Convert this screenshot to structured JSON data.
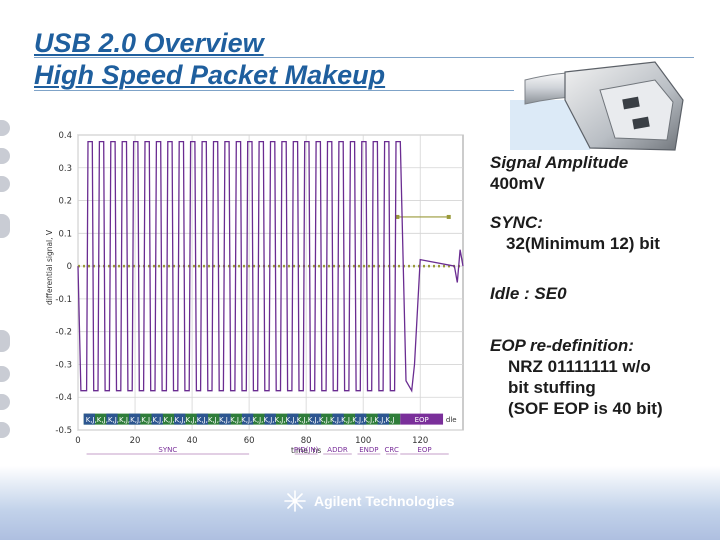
{
  "header": {
    "title_line1": "USB 2.0 Overview",
    "title_line2": "High Speed Packet Makeup"
  },
  "notes": {
    "signal_amplitude_label": "Signal Amplitude",
    "signal_amplitude_value": "400mV",
    "sync_label": "SYNC:",
    "sync_value": "32(Minimum 12) bit",
    "idle": "Idle : SE0",
    "eop_label": "EOP re-definition:",
    "eop_line1": "NRZ 01111111 w/o",
    "eop_line2": "bit stuffing",
    "eop_line3": "(SOF EOP is 40 bit)"
  },
  "footer": {
    "brand": "Agilent Technologies"
  },
  "chart_data": {
    "type": "line",
    "xlabel": "time, ns",
    "ylabel": "differential signal, V",
    "xlim": [
      0,
      135
    ],
    "ylim": [
      -0.5,
      0.4
    ],
    "x_ticks": [
      "0",
      "20",
      "40",
      "60",
      "80",
      "100",
      "120"
    ],
    "y_ticks": [
      "0.4",
      "0.3",
      "0.2",
      "0.1",
      "0",
      "-0.1",
      "-0.2",
      "-0.3",
      "-0.4",
      "-0.5"
    ],
    "grid": true,
    "series": [
      {
        "color": "#6a2c91",
        "points": [
          [
            0,
            0
          ],
          [
            1,
            -0.38
          ],
          [
            3,
            -0.38
          ],
          [
            3.5,
            0.38
          ],
          [
            5,
            0.38
          ],
          [
            5.5,
            -0.38
          ],
          [
            7,
            -0.38
          ],
          [
            7.5,
            0.38
          ],
          [
            9,
            0.38
          ],
          [
            9.5,
            -0.38
          ],
          [
            11,
            -0.38
          ],
          [
            11.5,
            0.38
          ],
          [
            13,
            0.38
          ],
          [
            13.5,
            -0.38
          ],
          [
            15,
            -0.38
          ],
          [
            15.5,
            0.38
          ],
          [
            17,
            0.38
          ],
          [
            17.5,
            -0.38
          ],
          [
            19,
            -0.38
          ],
          [
            19.5,
            0.38
          ],
          [
            21,
            0.38
          ],
          [
            21.5,
            -0.38
          ],
          [
            23,
            -0.38
          ],
          [
            23.5,
            0.38
          ],
          [
            25,
            0.38
          ],
          [
            25.5,
            -0.38
          ],
          [
            27,
            -0.38
          ],
          [
            27.5,
            0.38
          ],
          [
            29,
            0.38
          ],
          [
            29.5,
            -0.38
          ],
          [
            31,
            -0.38
          ],
          [
            31.5,
            0.38
          ],
          [
            33,
            0.38
          ],
          [
            33.5,
            -0.38
          ],
          [
            35,
            -0.38
          ],
          [
            35.5,
            0.38
          ],
          [
            37,
            0.38
          ],
          [
            37.5,
            -0.38
          ],
          [
            39,
            -0.38
          ],
          [
            39.5,
            0.38
          ],
          [
            41,
            0.38
          ],
          [
            41.5,
            -0.38
          ],
          [
            43,
            -0.38
          ],
          [
            43.5,
            0.38
          ],
          [
            45,
            0.38
          ],
          [
            45.5,
            -0.38
          ],
          [
            47,
            -0.38
          ],
          [
            47.5,
            0.38
          ],
          [
            49,
            0.38
          ],
          [
            49.5,
            -0.38
          ],
          [
            51,
            -0.38
          ],
          [
            51.5,
            0.38
          ],
          [
            53,
            0.38
          ],
          [
            53.5,
            -0.38
          ],
          [
            55,
            -0.38
          ],
          [
            55.5,
            0.38
          ],
          [
            57,
            0.38
          ],
          [
            57.5,
            -0.38
          ],
          [
            59,
            -0.38
          ],
          [
            59.5,
            0.38
          ],
          [
            61,
            0.38
          ],
          [
            61.5,
            -0.38
          ],
          [
            63,
            -0.38
          ],
          [
            63.5,
            0.38
          ],
          [
            65,
            0.38
          ],
          [
            65.5,
            -0.38
          ],
          [
            67,
            -0.38
          ],
          [
            67.5,
            0.38
          ],
          [
            69,
            0.38
          ],
          [
            69.5,
            -0.38
          ],
          [
            71,
            -0.38
          ],
          [
            71.5,
            0.38
          ],
          [
            73,
            0.38
          ],
          [
            73.5,
            -0.38
          ],
          [
            75,
            -0.38
          ],
          [
            75.5,
            0.38
          ],
          [
            77,
            0.38
          ],
          [
            77.5,
            -0.38
          ],
          [
            79,
            -0.38
          ],
          [
            79.5,
            0.38
          ],
          [
            81,
            0.38
          ],
          [
            81.5,
            -0.38
          ],
          [
            83,
            -0.38
          ],
          [
            83.5,
            0.38
          ],
          [
            85,
            0.38
          ],
          [
            85.5,
            -0.38
          ],
          [
            87,
            -0.38
          ],
          [
            87.5,
            0.38
          ],
          [
            89,
            0.38
          ],
          [
            89.5,
            -0.38
          ],
          [
            91,
            -0.38
          ],
          [
            91.5,
            0.38
          ],
          [
            93,
            0.38
          ],
          [
            93.5,
            -0.38
          ],
          [
            95,
            -0.38
          ],
          [
            95.5,
            0.38
          ],
          [
            97,
            0.38
          ],
          [
            97.5,
            -0.38
          ],
          [
            99,
            -0.38
          ],
          [
            99.5,
            0.38
          ],
          [
            101,
            0.38
          ],
          [
            101.5,
            -0.38
          ],
          [
            103,
            -0.38
          ],
          [
            103.5,
            0.38
          ],
          [
            105,
            0.38
          ],
          [
            105.5,
            -0.38
          ],
          [
            107,
            -0.38
          ],
          [
            107.5,
            0.38
          ],
          [
            109,
            0.38
          ],
          [
            109.5,
            -0.38
          ],
          [
            111,
            -0.38
          ],
          [
            111.5,
            0.38
          ],
          [
            113,
            0.38
          ],
          [
            113.5,
            0.2
          ],
          [
            115,
            -0.35
          ],
          [
            117,
            -0.38
          ],
          [
            118,
            -0.3
          ],
          [
            120,
            0.02
          ],
          [
            132,
            0.0
          ],
          [
            133,
            -0.05
          ],
          [
            134,
            0.05
          ],
          [
            135,
            0.0
          ]
        ]
      }
    ],
    "reference_levels": [
      {
        "y": 0.0,
        "x": [
          0,
          135
        ],
        "color": "#9a9a3a",
        "dotted": true
      },
      {
        "y": 0.15,
        "x": [
          112,
          130
        ],
        "color": "#9a9a3a",
        "dotted": false
      }
    ],
    "segments": [
      {
        "label": "SYNC",
        "x": [
          3,
          60
        ]
      },
      {
        "label": "PID(IN)",
        "x": [
          76,
          84
        ]
      },
      {
        "label": "ADDR",
        "x": [
          86,
          96
        ]
      },
      {
        "label": "ENDP",
        "x": [
          98,
          106
        ]
      },
      {
        "label": "CRC",
        "x": [
          108,
          112
        ]
      },
      {
        "label": "EOP",
        "x": [
          113,
          130
        ]
      }
    ],
    "bit_bar": {
      "text": "K,J,K,J,K,J,K,J,K,J,K,J,K,J,K,J,K,J,K,J,K,J,K,J,K,J,K,J,K,J,K,J,K,J,K,J,K,J,K,J,K,J,K,J,K,J,K,J,K,J,K,J,K,J,K,J",
      "eop_text": "EOP",
      "se0_text": "dle"
    }
  }
}
